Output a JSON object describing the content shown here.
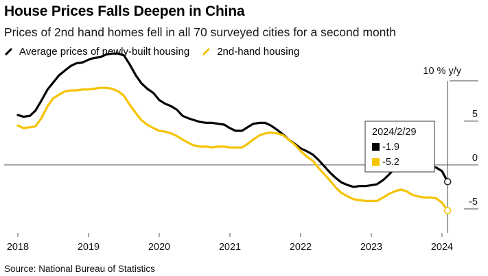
{
  "title": "House Prices Falls Deepen in China",
  "subtitle": "Prices of 2nd hand homes fell in all 70 surveyed cities for a second month",
  "source": "Source: National Bureau of Statistics",
  "colors": {
    "new": "#000000",
    "second": "#f5c300",
    "axis": "#333333"
  },
  "chart_data": {
    "type": "line",
    "unit_label": "10 % y/y",
    "ylim": [
      -7.5,
      11
    ],
    "yticks": [
      {
        "value": 5,
        "label": "5"
      },
      {
        "value": 0,
        "label": "0"
      },
      {
        "value": -5,
        "label": "-5"
      }
    ],
    "xlim": [
      2018,
      2024.35
    ],
    "xticks": [
      {
        "value": 2018,
        "label": "2018"
      },
      {
        "value": 2019,
        "label": "2019"
      },
      {
        "value": 2020,
        "label": "2020"
      },
      {
        "value": 2021,
        "label": "2021"
      },
      {
        "value": 2022,
        "label": "2022"
      },
      {
        "value": 2023,
        "label": "2023"
      },
      {
        "value": 2024,
        "label": "2024"
      }
    ],
    "series": [
      {
        "name": "Average prices of newly-built housing",
        "key": "new",
        "points": [
          [
            2018.0,
            5.7
          ],
          [
            2018.08,
            5.5
          ],
          [
            2018.17,
            5.6
          ],
          [
            2018.25,
            6.2
          ],
          [
            2018.33,
            7.3
          ],
          [
            2018.42,
            8.6
          ],
          [
            2018.5,
            9.4
          ],
          [
            2018.58,
            10.2
          ],
          [
            2018.67,
            10.8
          ],
          [
            2018.75,
            11.3
          ],
          [
            2018.83,
            11.6
          ],
          [
            2018.92,
            11.7
          ],
          [
            2019.0,
            12.0
          ],
          [
            2019.08,
            12.2
          ],
          [
            2019.17,
            12.3
          ],
          [
            2019.25,
            12.6
          ],
          [
            2019.33,
            12.7
          ],
          [
            2019.42,
            12.7
          ],
          [
            2019.5,
            12.5
          ],
          [
            2019.58,
            11.5
          ],
          [
            2019.67,
            10.2
          ],
          [
            2019.75,
            9.3
          ],
          [
            2019.83,
            8.7
          ],
          [
            2019.92,
            8.2
          ],
          [
            2020.0,
            7.4
          ],
          [
            2020.08,
            7.0
          ],
          [
            2020.17,
            6.7
          ],
          [
            2020.25,
            6.3
          ],
          [
            2020.33,
            5.6
          ],
          [
            2020.42,
            5.3
          ],
          [
            2020.5,
            5.1
          ],
          [
            2020.58,
            4.9
          ],
          [
            2020.67,
            4.8
          ],
          [
            2020.75,
            4.8
          ],
          [
            2020.83,
            4.7
          ],
          [
            2020.92,
            4.6
          ],
          [
            2021.0,
            4.2
          ],
          [
            2021.08,
            3.9
          ],
          [
            2021.17,
            3.9
          ],
          [
            2021.25,
            4.3
          ],
          [
            2021.33,
            4.7
          ],
          [
            2021.42,
            4.8
          ],
          [
            2021.5,
            4.8
          ],
          [
            2021.58,
            4.5
          ],
          [
            2021.67,
            4.0
          ],
          [
            2021.75,
            3.5
          ],
          [
            2021.83,
            2.9
          ],
          [
            2021.92,
            2.4
          ],
          [
            2022.0,
            1.9
          ],
          [
            2022.08,
            1.6
          ],
          [
            2022.17,
            1.2
          ],
          [
            2022.25,
            0.6
          ],
          [
            2022.33,
            -0.1
          ],
          [
            2022.42,
            -0.9
          ],
          [
            2022.5,
            -1.5
          ],
          [
            2022.58,
            -2.0
          ],
          [
            2022.67,
            -2.3
          ],
          [
            2022.75,
            -2.5
          ],
          [
            2022.83,
            -2.4
          ],
          [
            2022.92,
            -2.4
          ],
          [
            2023.0,
            -2.3
          ],
          [
            2023.08,
            -2.2
          ],
          [
            2023.17,
            -1.7
          ],
          [
            2023.25,
            -1.1
          ],
          [
            2023.33,
            -0.4
          ],
          [
            2023.42,
            -0.1
          ],
          [
            2023.5,
            0.0
          ],
          [
            2023.58,
            -0.1
          ],
          [
            2023.67,
            -0.1
          ],
          [
            2023.75,
            -0.1
          ],
          [
            2023.83,
            -0.1
          ],
          [
            2023.92,
            -0.3
          ],
          [
            2024.0,
            -0.7
          ],
          [
            2024.08,
            -1.9
          ]
        ]
      },
      {
        "name": "2nd-hand housing",
        "key": "second",
        "points": [
          [
            2018.0,
            4.5
          ],
          [
            2018.08,
            4.2
          ],
          [
            2018.17,
            4.3
          ],
          [
            2018.25,
            4.4
          ],
          [
            2018.33,
            5.3
          ],
          [
            2018.42,
            6.7
          ],
          [
            2018.5,
            7.6
          ],
          [
            2018.58,
            8.0
          ],
          [
            2018.67,
            8.4
          ],
          [
            2018.75,
            8.5
          ],
          [
            2018.83,
            8.5
          ],
          [
            2018.92,
            8.6
          ],
          [
            2019.0,
            8.6
          ],
          [
            2019.08,
            8.7
          ],
          [
            2019.17,
            8.8
          ],
          [
            2019.25,
            8.8
          ],
          [
            2019.33,
            8.7
          ],
          [
            2019.42,
            8.4
          ],
          [
            2019.5,
            7.9
          ],
          [
            2019.58,
            6.9
          ],
          [
            2019.67,
            5.9
          ],
          [
            2019.75,
            5.1
          ],
          [
            2019.83,
            4.6
          ],
          [
            2019.92,
            4.2
          ],
          [
            2020.0,
            3.9
          ],
          [
            2020.08,
            3.8
          ],
          [
            2020.17,
            3.6
          ],
          [
            2020.25,
            3.3
          ],
          [
            2020.33,
            2.9
          ],
          [
            2020.42,
            2.5
          ],
          [
            2020.5,
            2.2
          ],
          [
            2020.58,
            2.1
          ],
          [
            2020.67,
            2.1
          ],
          [
            2020.75,
            2.0
          ],
          [
            2020.83,
            2.1
          ],
          [
            2020.92,
            2.1
          ],
          [
            2021.0,
            2.0
          ],
          [
            2021.08,
            2.0
          ],
          [
            2021.17,
            2.0
          ],
          [
            2021.25,
            2.4
          ],
          [
            2021.33,
            2.9
          ],
          [
            2021.42,
            3.4
          ],
          [
            2021.5,
            3.6
          ],
          [
            2021.58,
            3.7
          ],
          [
            2021.67,
            3.6
          ],
          [
            2021.75,
            3.4
          ],
          [
            2021.83,
            2.9
          ],
          [
            2021.92,
            2.3
          ],
          [
            2022.0,
            1.6
          ],
          [
            2022.08,
            1.0
          ],
          [
            2022.17,
            0.5
          ],
          [
            2022.25,
            -0.3
          ],
          [
            2022.33,
            -1.0
          ],
          [
            2022.42,
            -1.8
          ],
          [
            2022.5,
            -2.6
          ],
          [
            2022.58,
            -3.2
          ],
          [
            2022.67,
            -3.6
          ],
          [
            2022.75,
            -3.9
          ],
          [
            2022.83,
            -4.0
          ],
          [
            2022.92,
            -4.1
          ],
          [
            2023.0,
            -4.1
          ],
          [
            2023.08,
            -4.1
          ],
          [
            2023.17,
            -3.7
          ],
          [
            2023.25,
            -3.3
          ],
          [
            2023.33,
            -3.0
          ],
          [
            2023.42,
            -2.8
          ],
          [
            2023.5,
            -3.0
          ],
          [
            2023.58,
            -3.4
          ],
          [
            2023.67,
            -3.6
          ],
          [
            2023.75,
            -3.7
          ],
          [
            2023.83,
            -3.7
          ],
          [
            2023.92,
            -3.8
          ],
          [
            2024.0,
            -4.3
          ],
          [
            2024.08,
            -5.2
          ]
        ]
      }
    ],
    "tooltip": {
      "date": "2024/2/29",
      "x": 2024.08,
      "rows": [
        {
          "key": "new",
          "label": "-1.9"
        },
        {
          "key": "second",
          "label": "-5.2"
        }
      ]
    }
  }
}
